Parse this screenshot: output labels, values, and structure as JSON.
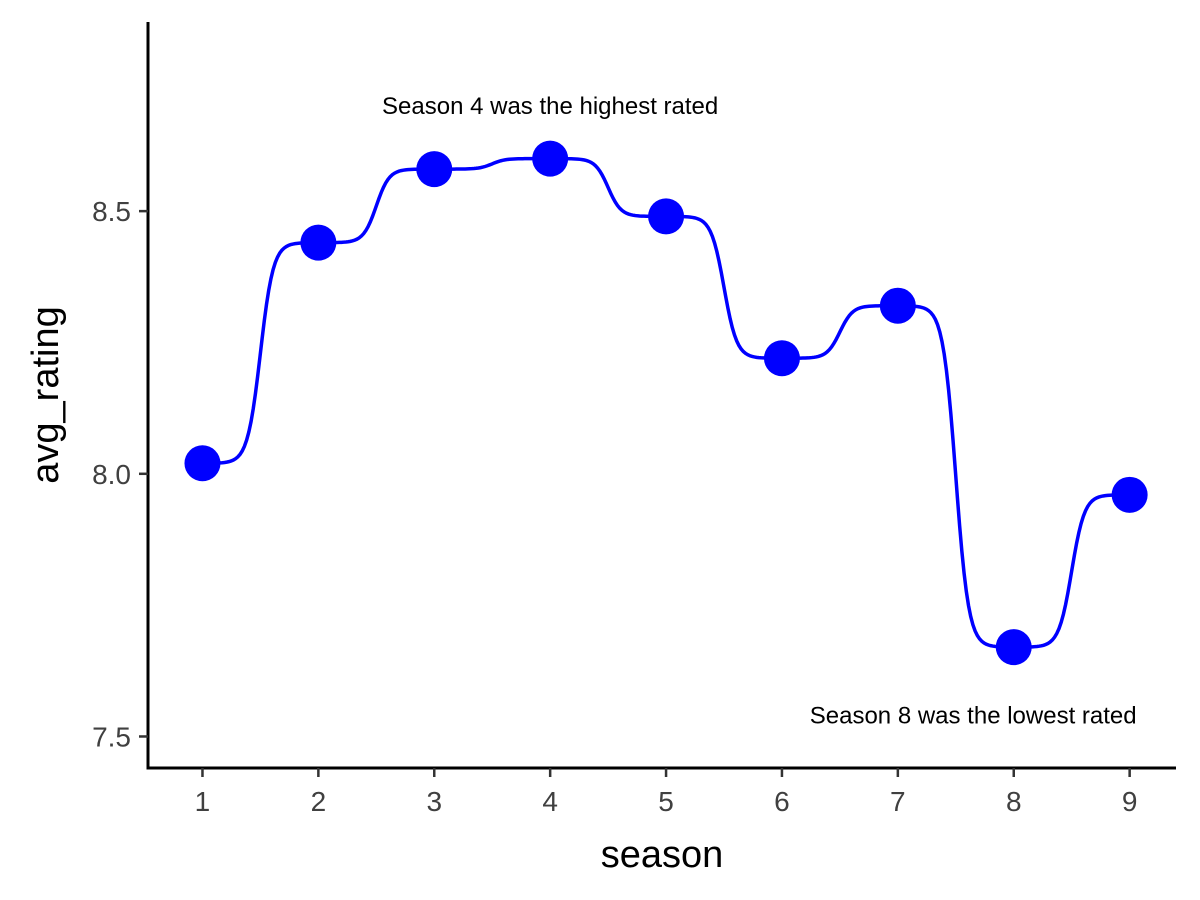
{
  "chart_data": {
    "type": "line",
    "title": "",
    "xlabel": "season",
    "ylabel": "avg_rating",
    "x": [
      1,
      2,
      3,
      4,
      5,
      6,
      7,
      8,
      9
    ],
    "series": [
      {
        "values": [
          8.02,
          8.44,
          8.58,
          8.6,
          8.49,
          8.22,
          8.32,
          7.67,
          7.96
        ]
      }
    ],
    "xticks": [
      "1",
      "2",
      "3",
      "4",
      "5",
      "6",
      "7",
      "8",
      "9"
    ],
    "yticks": [
      "7.5",
      "8.0",
      "8.5"
    ],
    "xlim": [
      0.53,
      9.4
    ],
    "ylim": [
      7.44,
      8.86
    ],
    "grid": false,
    "line_style": "smooth step",
    "annotations": [
      {
        "text": "Season 4 was the highest rated",
        "x": 4,
        "y": 8.7
      },
      {
        "text": "Season 8 was the lowest rated",
        "x": 7.65,
        "y": 7.54
      }
    ],
    "colors": {
      "series": "#0000ff",
      "axis": "#000000",
      "tick_text": "#404040"
    }
  }
}
